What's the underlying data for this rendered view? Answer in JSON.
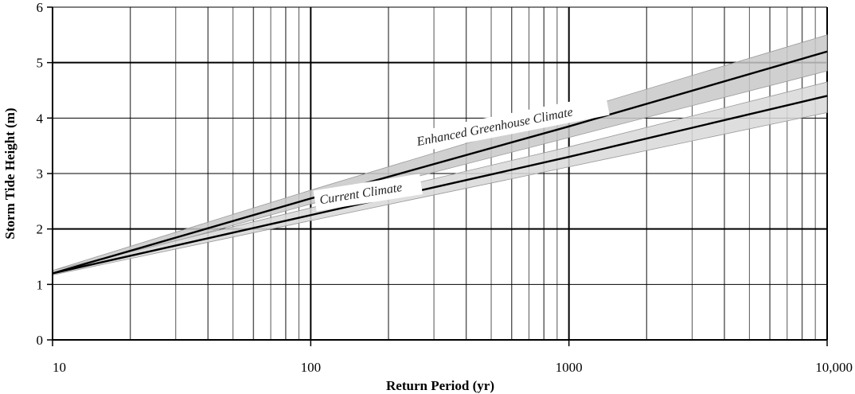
{
  "chart_data": {
    "type": "line",
    "title": "",
    "xlabel": "Return Period (yr)",
    "ylabel": "Storm Tide Height (m)",
    "x_scale": "log",
    "xlim": [
      10,
      10000
    ],
    "ylim": [
      0,
      6
    ],
    "x_ticks": [
      {
        "value": 10,
        "label": "10"
      },
      {
        "value": 100,
        "label": "100"
      },
      {
        "value": 1000,
        "label": "1000"
      },
      {
        "value": 10000,
        "label": "10,000"
      }
    ],
    "y_ticks": [
      {
        "value": 0,
        "label": "0"
      },
      {
        "value": 1,
        "label": "1"
      },
      {
        "value": 2,
        "label": "2"
      },
      {
        "value": 3,
        "label": "3"
      },
      {
        "value": 4,
        "label": "4"
      },
      {
        "value": 5,
        "label": "5"
      },
      {
        "value": 6,
        "label": "6"
      }
    ],
    "grid": true,
    "series": [
      {
        "name": "Enhanced Greenhouse Climate",
        "x": [
          10,
          100,
          1000,
          10000
        ],
        "y": [
          1.2,
          2.55,
          3.85,
          5.2
        ],
        "band_lower": [
          1.17,
          2.45,
          3.65,
          4.85
        ],
        "band_upper": [
          1.25,
          2.7,
          4.1,
          5.5
        ],
        "color": "#000000",
        "band_color": "#c8c8c8"
      },
      {
        "name": "Current Climate",
        "x": [
          10,
          100,
          1000,
          10000
        ],
        "y": [
          1.2,
          2.25,
          3.3,
          4.4
        ],
        "band_lower": [
          1.17,
          2.15,
          3.12,
          4.1
        ],
        "band_upper": [
          1.25,
          2.38,
          3.48,
          4.65
        ],
        "color": "#000000",
        "band_color": "#d8d8d8"
      }
    ],
    "annotations": [
      {
        "text": "Enhanced Greenhouse Climate",
        "x": 1000,
        "y": 3.5
      },
      {
        "text": "Current Climate",
        "x": 100,
        "y": 2.45
      }
    ]
  }
}
